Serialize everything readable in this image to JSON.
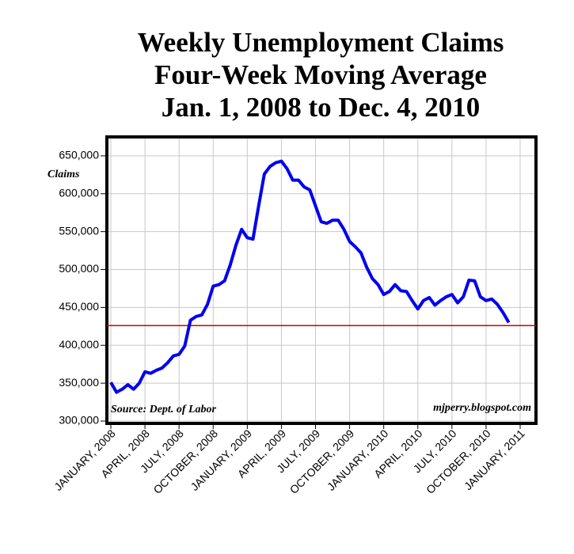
{
  "chart_data": {
    "type": "line",
    "title": [
      "Weekly Unemployment Claims",
      "Four-Week Moving Average",
      "Jan. 1, 2008 to Dec. 4, 2010"
    ],
    "y_label": "Claims",
    "annotations": [
      "Source: Dept. of Labor",
      "mjperry.blogspot.com"
    ],
    "categories": [
      "JANUARY, 2008",
      null,
      null,
      null,
      null,
      null,
      "APRIL, 2008",
      null,
      null,
      null,
      null,
      null,
      "JULY, 2008",
      null,
      null,
      null,
      null,
      null,
      "OCTOBER, 2008",
      null,
      null,
      null,
      null,
      null,
      "JANUARY, 2009",
      null,
      null,
      null,
      null,
      null,
      "APRIL, 2009",
      null,
      null,
      null,
      null,
      null,
      "JULY, 2009",
      null,
      null,
      null,
      null,
      null,
      "OCTOBER, 2009",
      null,
      null,
      null,
      null,
      null,
      "JANUARY, 2010",
      null,
      null,
      null,
      null,
      null,
      "APRIL, 2010",
      null,
      null,
      null,
      null,
      null,
      "JULY, 2010",
      null,
      null,
      null,
      null,
      null,
      "OCTOBER, 2010",
      null,
      null,
      null,
      null,
      null,
      "JANUARY, 2011"
    ],
    "series": [
      {
        "name": "Claims",
        "color": "#0000ee",
        "values": [
          351000,
          338000,
          342000,
          348000,
          342000,
          350000,
          365000,
          363000,
          367000,
          370000,
          377000,
          386000,
          388000,
          399000,
          433000,
          438000,
          440000,
          454000,
          478000,
          480000,
          485000,
          506000,
          532000,
          553000,
          542000,
          540000,
          584000,
          626000,
          636000,
          641000,
          643000,
          633000,
          618000,
          618000,
          609000,
          605000,
          584000,
          563000,
          561000,
          565000,
          565000,
          553000,
          537000,
          530000,
          522000,
          503000,
          488000,
          480000,
          467000,
          471000,
          480000,
          472000,
          471000,
          459000,
          448000,
          459000,
          463000,
          453000,
          459000,
          464000,
          467000,
          456000,
          464000,
          486000,
          485000,
          464000,
          459000,
          461000,
          454000,
          443000,
          430000,
          null,
          null
        ]
      }
    ],
    "reference_line": {
      "value": 426000,
      "color": "#cc0000"
    },
    "ylim": [
      300000,
      675000
    ],
    "yticks": [
      {
        "value": 300000,
        "label": "300,000"
      },
      {
        "value": 350000,
        "label": "350,000"
      },
      {
        "value": 400000,
        "label": "400,000"
      },
      {
        "value": 450000,
        "label": "450,000"
      },
      {
        "value": 500000,
        "label": "500,000"
      },
      {
        "value": 550000,
        "label": "550,000"
      },
      {
        "value": 600000,
        "label": "600,000"
      },
      {
        "value": 650000,
        "label": "650,000"
      }
    ],
    "grid": true
  }
}
